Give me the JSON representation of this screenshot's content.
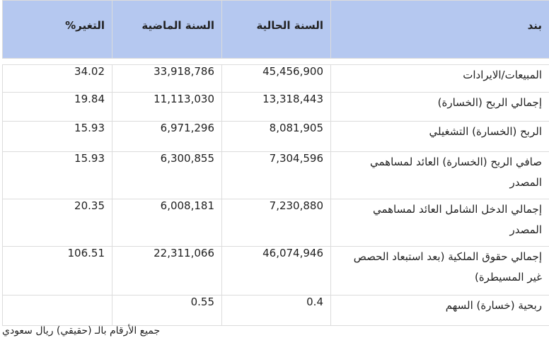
{
  "table": {
    "headers": {
      "item": "بند",
      "current": "السنة الحالية",
      "previous": "السنة الماضية",
      "change": "التغير%"
    },
    "rows": [
      {
        "item": "المبيعات/الايرادات",
        "current": "45,456,900",
        "previous": "33,918,786",
        "change": "34.02"
      },
      {
        "item": "إجمالي الربح (الخسارة)",
        "current": "13,318,443",
        "previous": "11,113,030",
        "change": "19.84"
      },
      {
        "item": "الربح (الخسارة) التشغيلي",
        "current": "8,081,905",
        "previous": "6,971,296",
        "change": "15.93"
      },
      {
        "item": "صافي الربح (الخسارة) العائد لمساهمي المصدر",
        "current": "7,304,596",
        "previous": "6,300,855",
        "change": "15.93"
      },
      {
        "item": "إجمالي الدخل الشامل العائد لمساهمي المصدر",
        "current": "7,230,880",
        "previous": "6,008,181",
        "change": "20.35"
      },
      {
        "item": "إجمالي حقوق الملكية (بعد استبعاد الحصص غير المسيطرة)",
        "current": "46,074,946",
        "previous": "22,311,066",
        "change": "106.51"
      },
      {
        "item": "ربحية (خسارة) السهم",
        "current": "0.4",
        "previous": "0.55",
        "change": ""
      }
    ]
  },
  "footnote": "جميع الأرقام بالـ (حقيقي) ريال سعودي",
  "colors": {
    "header_bg": "#b5c8f0",
    "value_green": "#3aaa55",
    "border": "#dcdcdc"
  }
}
